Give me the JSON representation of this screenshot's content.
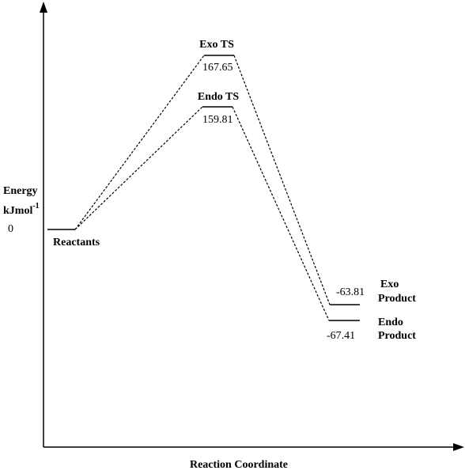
{
  "axis": {
    "y_label": "Energy",
    "y_unit": "kJmol",
    "y_unit_exponent": "-1",
    "zero_label": 0,
    "x_label": "Reaction Coordinate"
  },
  "levels": [
    {
      "label": "Reactants"
    },
    {
      "label": "Exo TS",
      "energy": 167.65
    },
    {
      "label": "Endo TS",
      "energy": 159.81
    },
    {
      "label": [
        "Exo",
        "Product"
      ],
      "energy": -63.81
    },
    {
      "label": [
        "Endo",
        "Product"
      ],
      "energy": -67.41
    }
  ]
}
